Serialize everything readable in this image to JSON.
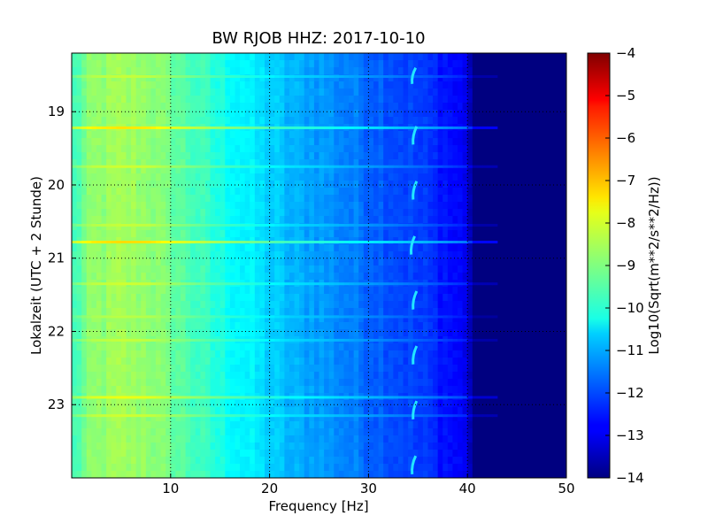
{
  "chart_data": {
    "type": "heatmap",
    "title": "BW RJOB HHZ: 2017-10-10",
    "xlabel": "Frequency [Hz]",
    "ylabel": "Lokalzeit (UTC + 2 Stunde)",
    "xlim": [
      0,
      50
    ],
    "ylim": [
      24,
      18.2
    ],
    "x_ticks": [
      10,
      20,
      30,
      40,
      50
    ],
    "y_ticks": [
      19,
      20,
      21,
      22,
      23
    ],
    "grid": true,
    "colormap": "jet",
    "colorbar": {
      "label": "Log10(Sqrt(m**2/s**2/Hz))",
      "range": [
        -14,
        -4
      ],
      "ticks": [
        -4,
        -5,
        -6,
        -7,
        -8,
        -9,
        -10,
        -11,
        -12,
        -13,
        -14
      ]
    },
    "spectrum_profile": {
      "frequency_hz": [
        0,
        2,
        5,
        8,
        10,
        12,
        15,
        18,
        20,
        22,
        25,
        28,
        30,
        33,
        36,
        38,
        40,
        40.5,
        50
      ],
      "log_amplitude": [
        -9.7,
        -8.9,
        -8.7,
        -8.8,
        -9.2,
        -9.5,
        -10.0,
        -10.4,
        -10.7,
        -11.0,
        -11.2,
        -11.5,
        -11.7,
        -12.0,
        -12.3,
        -12.6,
        -12.9,
        -14.0,
        -14.0
      ]
    },
    "broadband_lines": [
      {
        "time": 18.52,
        "level_offset": 0.4
      },
      {
        "time": 19.22,
        "level_offset": 1.2
      },
      {
        "time": 19.75,
        "level_offset": 0.5
      },
      {
        "time": 20.55,
        "level_offset": 0.4
      },
      {
        "time": 20.78,
        "level_offset": 1.3
      },
      {
        "time": 21.35,
        "level_offset": 0.5
      },
      {
        "time": 21.8,
        "level_offset": 0.3
      },
      {
        "time": 22.12,
        "level_offset": 0.4
      },
      {
        "time": 22.9,
        "level_offset": 0.8
      },
      {
        "time": 23.15,
        "level_offset": 0.5
      }
    ],
    "tonal_streaks": [
      {
        "frequency_hz": 34.5,
        "time_start": 18.4,
        "time_end": 18.62
      },
      {
        "frequency_hz": 34.6,
        "time_start": 19.2,
        "time_end": 19.45
      },
      {
        "frequency_hz": 34.6,
        "time_start": 19.95,
        "time_end": 20.2
      },
      {
        "frequency_hz": 34.4,
        "time_start": 20.7,
        "time_end": 20.95
      },
      {
        "frequency_hz": 34.6,
        "time_start": 21.45,
        "time_end": 21.7
      },
      {
        "frequency_hz": 34.6,
        "time_start": 22.2,
        "time_end": 22.45
      },
      {
        "frequency_hz": 34.6,
        "time_start": 22.95,
        "time_end": 23.2
      },
      {
        "frequency_hz": 34.5,
        "time_start": 23.7,
        "time_end": 23.95
      }
    ]
  }
}
